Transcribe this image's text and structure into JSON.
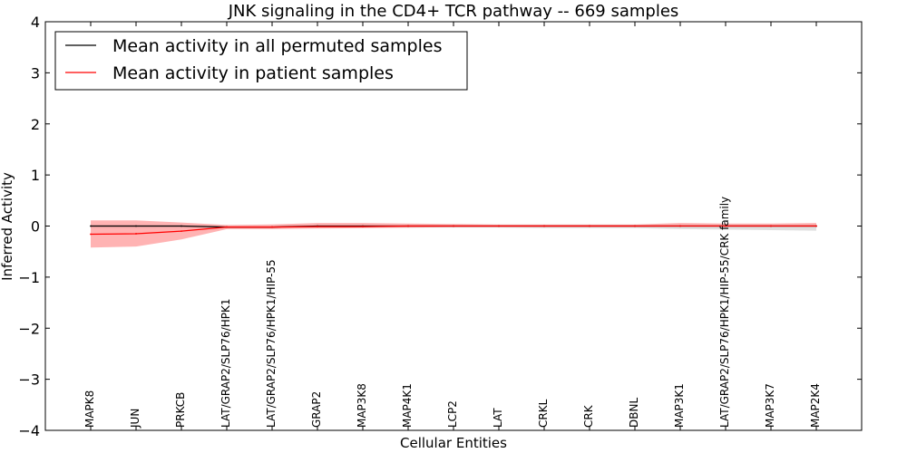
{
  "chart_data": {
    "type": "line",
    "title": "JNK signaling in the CD4+ TCR pathway -- 669 samples",
    "xlabel": "Cellular Entities",
    "ylabel": "Inferred Activity",
    "ylim": [
      -4,
      4
    ],
    "yticks": [
      -4,
      -3,
      -2,
      -1,
      0,
      1,
      2,
      3,
      4
    ],
    "ytick_labels": [
      "−4",
      "−3",
      "−2",
      "−1",
      "0",
      "1",
      "2",
      "3",
      "4"
    ],
    "grid": false,
    "legend_position": "top-left",
    "categories": [
      "MAPK8",
      "JUN",
      "PRKCB",
      "LAT/GRAP2/SLP76/HPK1",
      "LAT/GRAP2/SLP76/HPK1/HIP-55",
      "GRAP2",
      "MAP3K8",
      "MAP4K1",
      "LCP2",
      "LAT",
      "CRKL",
      "CRK",
      "DBNL",
      "MAP3K1",
      "LAT/GRAP2/SLP76/HPK1/HIP-55/CRK family",
      "MAP3K7",
      "MAP2K4"
    ],
    "series": [
      {
        "name": "Mean activity in all permuted samples",
        "color": "#000000",
        "fill_color": "#bbbbbb",
        "values": [
          0.0,
          0.0,
          0.0,
          -0.02,
          -0.02,
          0.0,
          0.0,
          0.0,
          0.0,
          0.0,
          0.0,
          0.0,
          0.0,
          0.0,
          0.0,
          0.0,
          0.0
        ],
        "lower": [
          -0.04,
          -0.04,
          -0.03,
          -0.04,
          -0.04,
          -0.03,
          -0.03,
          -0.03,
          -0.03,
          -0.03,
          -0.04,
          -0.04,
          -0.04,
          -0.06,
          -0.07,
          -0.08,
          -0.09
        ],
        "upper": [
          0.03,
          0.03,
          0.02,
          0.02,
          0.02,
          0.02,
          0.02,
          0.02,
          0.02,
          0.02,
          0.02,
          0.02,
          0.02,
          0.02,
          0.02,
          0.02,
          0.02
        ]
      },
      {
        "name": "Mean activity in patient samples",
        "color": "#ff0000",
        "fill_color": "#ff9999",
        "values": [
          -0.16,
          -0.15,
          -0.1,
          -0.02,
          -0.02,
          -0.01,
          -0.01,
          0.0,
          0.0,
          0.0,
          0.0,
          0.0,
          0.0,
          0.0,
          0.0,
          0.0,
          0.0
        ],
        "lower": [
          -0.42,
          -0.4,
          -0.26,
          -0.06,
          -0.06,
          -0.05,
          -0.04,
          -0.03,
          -0.02,
          -0.02,
          -0.02,
          -0.02,
          -0.02,
          -0.01,
          -0.01,
          -0.01,
          -0.01
        ],
        "upper": [
          0.11,
          0.11,
          0.07,
          0.02,
          0.03,
          0.06,
          0.06,
          0.05,
          0.04,
          0.03,
          0.03,
          0.03,
          0.03,
          0.06,
          0.05,
          0.05,
          0.06
        ]
      }
    ]
  }
}
